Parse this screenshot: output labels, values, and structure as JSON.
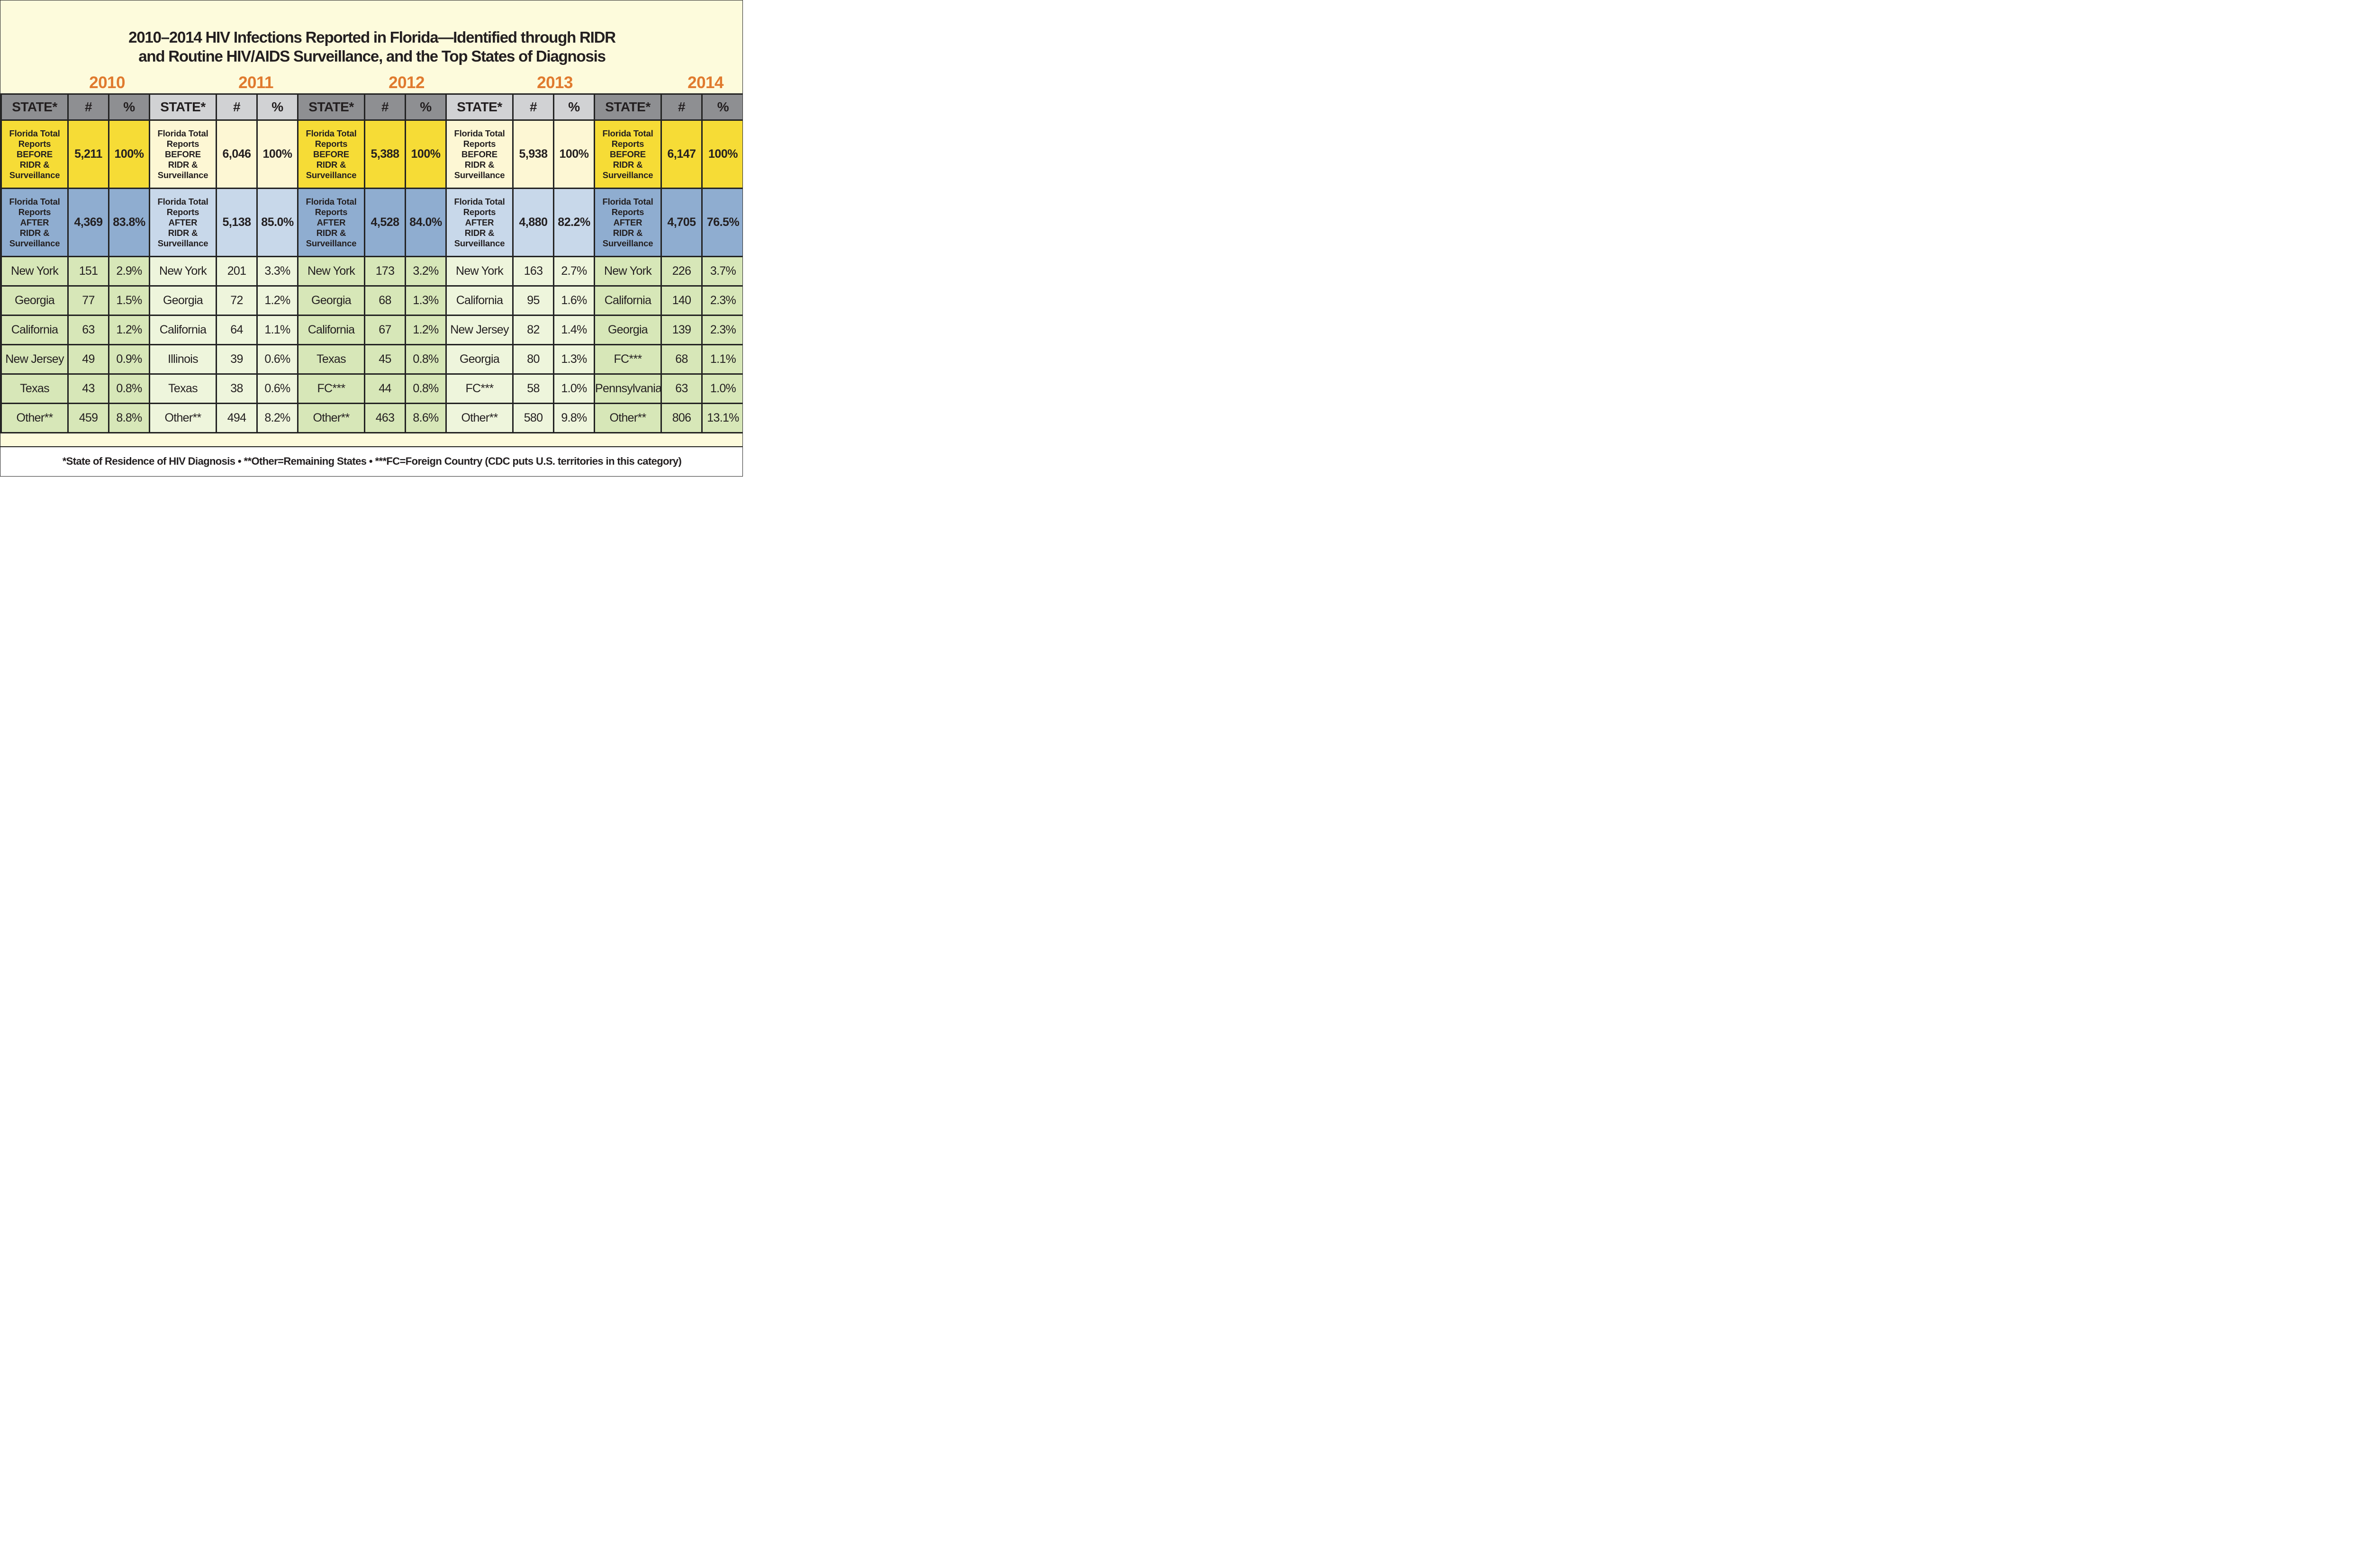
{
  "chart_data": {
    "type": "table",
    "title_lines": [
      "2010–2014 HIV Infections Reported in Florida—Identified through RIDR",
      "and Routine HIV/AIDS Surveillance, and the Top States of Diagnosis"
    ],
    "column_headers": {
      "state": "STATE*",
      "count": "#",
      "percent": "%"
    },
    "years": [
      {
        "year": "2010",
        "before": {
          "label_lines": [
            "Florida Total",
            "Reports",
            "BEFORE",
            "RIDR &",
            "Surveillance"
          ],
          "count": "5,211",
          "percent": "100%"
        },
        "after": {
          "label_lines": [
            "Florida Total",
            "Reports",
            "AFTER",
            "RIDR &",
            "Surveillance"
          ],
          "count": "4,369",
          "percent": "83.8%"
        },
        "rows": [
          {
            "state": "New York",
            "count": "151",
            "percent": "2.9%"
          },
          {
            "state": "Georgia",
            "count": "77",
            "percent": "1.5%"
          },
          {
            "state": "California",
            "count": "63",
            "percent": "1.2%"
          },
          {
            "state": "New Jersey",
            "count": "49",
            "percent": "0.9%"
          },
          {
            "state": "Texas",
            "count": "43",
            "percent": "0.8%"
          },
          {
            "state": "Other**",
            "count": "459",
            "percent": "8.8%"
          }
        ]
      },
      {
        "year": "2011",
        "before": {
          "label_lines": [
            "Florida Total",
            "Reports",
            "BEFORE",
            "RIDR &",
            "Surveillance"
          ],
          "count": "6,046",
          "percent": "100%"
        },
        "after": {
          "label_lines": [
            "Florida Total",
            "Reports",
            "AFTER",
            "RIDR &",
            "Surveillance"
          ],
          "count": "5,138",
          "percent": "85.0%"
        },
        "rows": [
          {
            "state": "New York",
            "count": "201",
            "percent": "3.3%"
          },
          {
            "state": "Georgia",
            "count": "72",
            "percent": "1.2%"
          },
          {
            "state": "California",
            "count": "64",
            "percent": "1.1%"
          },
          {
            "state": "Illinois",
            "count": "39",
            "percent": "0.6%"
          },
          {
            "state": "Texas",
            "count": "38",
            "percent": "0.6%"
          },
          {
            "state": "Other**",
            "count": "494",
            "percent": "8.2%"
          }
        ]
      },
      {
        "year": "2012",
        "before": {
          "label_lines": [
            "Florida Total",
            "Reports",
            "BEFORE",
            "RIDR &",
            "Surveillance"
          ],
          "count": "5,388",
          "percent": "100%"
        },
        "after": {
          "label_lines": [
            "Florida Total",
            "Reports",
            "AFTER",
            "RIDR &",
            "Surveillance"
          ],
          "count": "4,528",
          "percent": "84.0%"
        },
        "rows": [
          {
            "state": "New York",
            "count": "173",
            "percent": "3.2%"
          },
          {
            "state": "Georgia",
            "count": "68",
            "percent": "1.3%"
          },
          {
            "state": "California",
            "count": "67",
            "percent": "1.2%"
          },
          {
            "state": "Texas",
            "count": "45",
            "percent": "0.8%"
          },
          {
            "state": "FC***",
            "count": "44",
            "percent": "0.8%"
          },
          {
            "state": "Other**",
            "count": "463",
            "percent": "8.6%"
          }
        ]
      },
      {
        "year": "2013",
        "before": {
          "label_lines": [
            "Florida Total",
            "Reports",
            "BEFORE",
            "RIDR &",
            "Surveillance"
          ],
          "count": "5,938",
          "percent": "100%"
        },
        "after": {
          "label_lines": [
            "Florida Total",
            "Reports",
            "AFTER",
            "RIDR &",
            "Surveillance"
          ],
          "count": "4,880",
          "percent": "82.2%"
        },
        "rows": [
          {
            "state": "New York",
            "count": "163",
            "percent": "2.7%"
          },
          {
            "state": "California",
            "count": "95",
            "percent": "1.6%"
          },
          {
            "state": "New Jersey",
            "count": "82",
            "percent": "1.4%"
          },
          {
            "state": "Georgia",
            "count": "80",
            "percent": "1.3%"
          },
          {
            "state": "FC***",
            "count": "58",
            "percent": "1.0%"
          },
          {
            "state": "Other**",
            "count": "580",
            "percent": "9.8%"
          }
        ]
      },
      {
        "year": "2014",
        "before": {
          "label_lines": [
            "Florida Total",
            "Reports",
            "BEFORE",
            "RIDR &",
            "Surveillance"
          ],
          "count": "6,147",
          "percent": "100%"
        },
        "after": {
          "label_lines": [
            "Florida Total",
            "Reports",
            "AFTER",
            "RIDR &",
            "Surveillance"
          ],
          "count": "4,705",
          "percent": "76.5%"
        },
        "rows": [
          {
            "state": "New York",
            "count": "226",
            "percent": "3.7%"
          },
          {
            "state": "California",
            "count": "140",
            "percent": "2.3%"
          },
          {
            "state": "Georgia",
            "count": "139",
            "percent": "2.3%"
          },
          {
            "state": "FC***",
            "count": "68",
            "percent": "1.1%"
          },
          {
            "state": "Pennsylvania",
            "count": "63",
            "percent": "1.0%"
          },
          {
            "state": "Other**",
            "count": "806",
            "percent": "13.1%"
          }
        ]
      }
    ],
    "footnote": "*State of Residence of HIV Diagnosis • **Other=Remaining States • ***FC=Foreign Country (CDC puts U.S. territories in this category)"
  },
  "colors": {
    "background": "#fdfbdc",
    "year_label": "#e07a2e",
    "header_dark": "#8e8f92",
    "header_light": "#d1d2d4",
    "before_dark": "#f6dc36",
    "before_light": "#fdf7d4",
    "after_dark": "#8fadd0",
    "after_light": "#c8d8ea",
    "row_dark": "#d7e7b8",
    "row_light": "#eef5dc",
    "text": "#231f20"
  }
}
